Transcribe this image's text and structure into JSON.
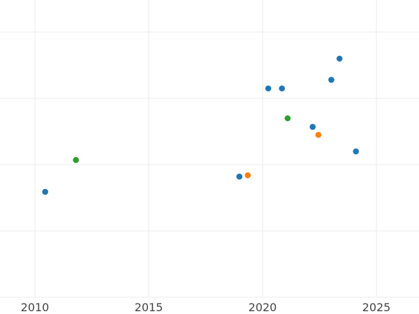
{
  "chart_data": {
    "type": "scatter",
    "title": "",
    "xlabel": "",
    "ylabel": "",
    "xlim": [
      2009.0,
      2026.9
    ],
    "ylim": [
      0,
      4.4
    ],
    "x_ticks": [
      2010,
      2015,
      2020,
      2025
    ],
    "x_tick_labels": [
      "2010",
      "2015",
      "2020",
      "2025"
    ],
    "y_gridlines": [
      0,
      1,
      2,
      3,
      4
    ],
    "grid": true,
    "legend": "none",
    "colors": {
      "blue": "#1f77b4",
      "orange": "#ff7f0e",
      "green": "#2ca02c",
      "grid": "#ebebeb",
      "tick_text": "#444444"
    },
    "series": [
      {
        "color": "#1f77b4",
        "points": [
          {
            "x": 2010.45,
            "y": 1.59
          },
          {
            "x": 2018.98,
            "y": 1.82
          },
          {
            "x": 2020.25,
            "y": 3.15
          },
          {
            "x": 2020.85,
            "y": 3.15
          },
          {
            "x": 2022.2,
            "y": 2.57
          },
          {
            "x": 2023.02,
            "y": 3.28
          },
          {
            "x": 2023.38,
            "y": 3.6
          },
          {
            "x": 2024.1,
            "y": 2.2
          }
        ]
      },
      {
        "color": "#ff7f0e",
        "points": [
          {
            "x": 2019.35,
            "y": 1.84
          },
          {
            "x": 2022.45,
            "y": 2.45
          }
        ]
      },
      {
        "color": "#2ca02c",
        "points": [
          {
            "x": 2011.8,
            "y": 2.07
          },
          {
            "x": 2021.1,
            "y": 2.7
          }
        ]
      }
    ]
  }
}
